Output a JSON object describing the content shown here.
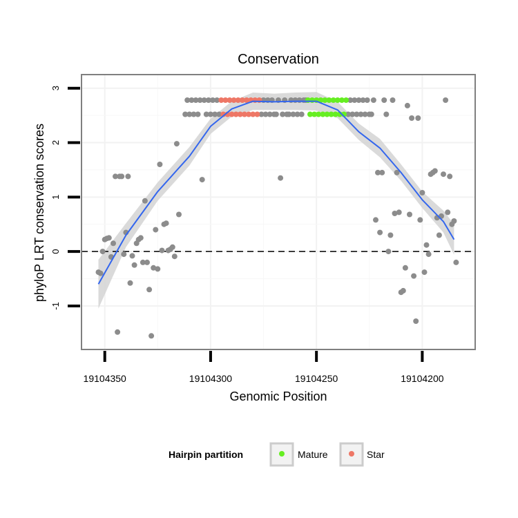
{
  "chart_data": {
    "type": "scatter",
    "title": "Conservation",
    "xlabel": "Genomic Position",
    "ylabel": "phyloP LRT conservation scores",
    "x_reversed": true,
    "xlim": [
      19104361,
      19104175
    ],
    "ylim": [
      -1.8,
      3.25
    ],
    "x_ticks": [
      19104350,
      19104300,
      19104250,
      19104200
    ],
    "x_tick_labels": [
      "19104350",
      "19104300",
      "19104250",
      "19104200"
    ],
    "y_ticks": [
      -1,
      0,
      1,
      2,
      3
    ],
    "y_tick_labels": [
      "-1",
      "0",
      "1",
      "2",
      "3"
    ],
    "reference_line": {
      "y": 0,
      "style": "dashed"
    },
    "colors": {
      "other": "#8c8c8c",
      "mature": "#66ee22",
      "star": "#ee7766",
      "smooth": "#3366ee",
      "band": "#d3d3d3",
      "panel_border": "#7f7f7f"
    },
    "legend": {
      "title": "Hairpin partition",
      "position": "bottom",
      "items": [
        {
          "label": "Mature",
          "color": "#66ee22"
        },
        {
          "label": "Star",
          "color": "#ee7766"
        }
      ]
    },
    "series": [
      {
        "name": "Other",
        "points": [
          [
            19104353,
            -0.38
          ],
          [
            19104352,
            -0.4
          ],
          [
            19104351,
            0.0
          ],
          [
            19104350,
            0.22
          ],
          [
            19104349,
            0.24
          ],
          [
            19104348,
            0.25
          ],
          [
            19104347,
            -0.1
          ],
          [
            19104346,
            0.15
          ],
          [
            19104345,
            1.38
          ],
          [
            19104344,
            -1.48
          ],
          [
            19104343,
            1.38
          ],
          [
            19104342,
            1.38
          ],
          [
            19104341,
            -0.05
          ],
          [
            19104340,
            0.35
          ],
          [
            19104339,
            1.38
          ],
          [
            19104338,
            -0.58
          ],
          [
            19104337,
            -0.08
          ],
          [
            19104336,
            -0.25
          ],
          [
            19104335,
            0.15
          ],
          [
            19104334,
            0.22
          ],
          [
            19104333,
            0.25
          ],
          [
            19104332,
            -0.2
          ],
          [
            19104331,
            0.93
          ],
          [
            19104330,
            -0.2
          ],
          [
            19104329,
            -0.7
          ],
          [
            19104328,
            -1.55
          ],
          [
            19104327,
            -0.3
          ],
          [
            19104326,
            0.4
          ],
          [
            19104325,
            -0.32
          ],
          [
            19104324,
            1.6
          ],
          [
            19104323,
            0.02
          ],
          [
            19104322,
            0.5
          ],
          [
            19104321,
            0.52
          ],
          [
            19104320,
            0.02
          ],
          [
            19104319,
            0.04
          ],
          [
            19104318,
            0.08
          ],
          [
            19104317,
            -0.09
          ],
          [
            19104316,
            1.98
          ],
          [
            19104315,
            0.68
          ],
          [
            19104312,
            2.52
          ],
          [
            19104311,
            2.78
          ],
          [
            19104310,
            2.52
          ],
          [
            19104309,
            2.78
          ],
          [
            19104308,
            2.52
          ],
          [
            19104307,
            2.78
          ],
          [
            19104306,
            2.52
          ],
          [
            19104305,
            2.78
          ],
          [
            19104304,
            1.32
          ],
          [
            19104303,
            2.78
          ],
          [
            19104302,
            2.52
          ],
          [
            19104301,
            2.78
          ],
          [
            19104300,
            2.52
          ],
          [
            19104299,
            2.78
          ],
          [
            19104298,
            2.52
          ],
          [
            19104297,
            2.78
          ],
          [
            19104296,
            2.52
          ],
          [
            19104276,
            2.52
          ],
          [
            19104275,
            2.78
          ],
          [
            19104274,
            2.52
          ],
          [
            19104273,
            2.78
          ],
          [
            19104272,
            2.52
          ],
          [
            19104271,
            2.78
          ],
          [
            19104270,
            2.52
          ],
          [
            19104269,
            2.52
          ],
          [
            19104268,
            2.78
          ],
          [
            19104267,
            1.35
          ],
          [
            19104266,
            2.52
          ],
          [
            19104265,
            2.78
          ],
          [
            19104264,
            2.52
          ],
          [
            19104263,
            2.52
          ],
          [
            19104262,
            2.78
          ],
          [
            19104261,
            2.52
          ],
          [
            19104260,
            2.78
          ],
          [
            19104259,
            2.52
          ],
          [
            19104258,
            2.78
          ],
          [
            19104257,
            2.52
          ],
          [
            19104256,
            2.78
          ],
          [
            19104255,
            2.78
          ],
          [
            19104235,
            2.52
          ],
          [
            19104234,
            2.78
          ],
          [
            19104233,
            2.52
          ],
          [
            19104232,
            2.78
          ],
          [
            19104231,
            2.52
          ],
          [
            19104230,
            2.78
          ],
          [
            19104229,
            2.52
          ],
          [
            19104228,
            2.78
          ],
          [
            19104227,
            2.52
          ],
          [
            19104226,
            2.78
          ],
          [
            19104225,
            2.52
          ],
          [
            19104224,
            2.52
          ],
          [
            19104223,
            2.78
          ],
          [
            19104222,
            0.58
          ],
          [
            19104221,
            1.45
          ],
          [
            19104220,
            0.35
          ],
          [
            19104219,
            1.45
          ],
          [
            19104218,
            2.78
          ],
          [
            19104217,
            2.52
          ],
          [
            19104216,
            0.0
          ],
          [
            19104215,
            0.3
          ],
          [
            19104214,
            2.78
          ],
          [
            19104213,
            0.7
          ],
          [
            19104212,
            1.45
          ],
          [
            19104211,
            0.72
          ],
          [
            19104210,
            -0.75
          ],
          [
            19104209,
            -0.72
          ],
          [
            19104208,
            -0.3
          ],
          [
            19104207,
            2.68
          ],
          [
            19104206,
            0.68
          ],
          [
            19104205,
            2.45
          ],
          [
            19104204,
            -0.45
          ],
          [
            19104203,
            -1.28
          ],
          [
            19104202,
            2.45
          ],
          [
            19104201,
            0.58
          ],
          [
            19104200,
            1.08
          ],
          [
            19104199,
            -0.38
          ],
          [
            19104198,
            0.12
          ],
          [
            19104197,
            -0.05
          ],
          [
            19104196,
            1.42
          ],
          [
            19104195,
            1.45
          ],
          [
            19104194,
            1.48
          ],
          [
            19104193,
            0.62
          ],
          [
            19104192,
            0.3
          ],
          [
            19104191,
            0.65
          ],
          [
            19104190,
            1.42
          ],
          [
            19104189,
            2.78
          ],
          [
            19104188,
            0.72
          ],
          [
            19104187,
            1.38
          ],
          [
            19104186,
            0.5
          ],
          [
            19104185,
            0.56
          ],
          [
            19104184,
            -0.2
          ]
        ]
      },
      {
        "name": "Star",
        "points": [
          [
            19104295,
            2.78
          ],
          [
            19104294,
            2.52
          ],
          [
            19104293,
            2.78
          ],
          [
            19104292,
            2.52
          ],
          [
            19104291,
            2.78
          ],
          [
            19104290,
            2.52
          ],
          [
            19104289,
            2.78
          ],
          [
            19104288,
            2.52
          ],
          [
            19104287,
            2.78
          ],
          [
            19104286,
            2.52
          ],
          [
            19104285,
            2.78
          ],
          [
            19104284,
            2.52
          ],
          [
            19104283,
            2.78
          ],
          [
            19104282,
            2.52
          ],
          [
            19104281,
            2.78
          ],
          [
            19104280,
            2.52
          ],
          [
            19104279,
            2.78
          ],
          [
            19104278,
            2.52
          ],
          [
            19104277,
            2.78
          ]
        ]
      },
      {
        "name": "Mature",
        "points": [
          [
            19104254,
            2.78
          ],
          [
            19104253,
            2.52
          ],
          [
            19104252,
            2.78
          ],
          [
            19104251,
            2.52
          ],
          [
            19104250,
            2.78
          ],
          [
            19104249,
            2.52
          ],
          [
            19104248,
            2.78
          ],
          [
            19104247,
            2.52
          ],
          [
            19104246,
            2.78
          ],
          [
            19104245,
            2.52
          ],
          [
            19104244,
            2.78
          ],
          [
            19104243,
            2.52
          ],
          [
            19104242,
            2.78
          ],
          [
            19104241,
            2.52
          ],
          [
            19104240,
            2.78
          ],
          [
            19104239,
            2.52
          ],
          [
            19104238,
            2.78
          ],
          [
            19104237,
            2.52
          ],
          [
            19104236,
            2.78
          ]
        ]
      }
    ],
    "smooth": {
      "x": [
        19104353,
        19104340,
        19104325,
        19104310,
        19104300,
        19104290,
        19104280,
        19104270,
        19104260,
        19104250,
        19104240,
        19104230,
        19104220,
        19104210,
        19104200,
        19104190,
        19104185
      ],
      "y": [
        -0.6,
        0.3,
        1.1,
        1.75,
        2.3,
        2.62,
        2.76,
        2.75,
        2.76,
        2.76,
        2.6,
        2.2,
        1.9,
        1.45,
        0.95,
        0.55,
        0.22
      ],
      "band_halfwidth": [
        0.45,
        0.22,
        0.17,
        0.17,
        0.14,
        0.14,
        0.16,
        0.15,
        0.16,
        0.17,
        0.15,
        0.15,
        0.17,
        0.15,
        0.15,
        0.2,
        0.28
      ]
    }
  }
}
